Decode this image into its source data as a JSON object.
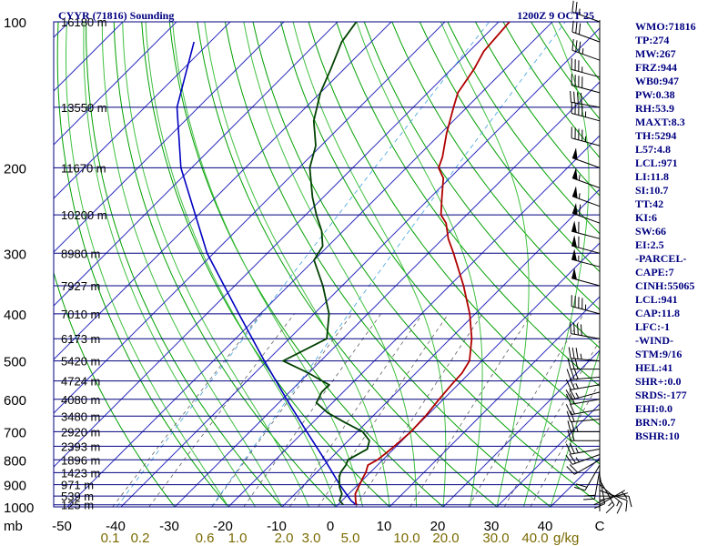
{
  "header": {
    "station": "CYYR (71816) Sounding",
    "time": "1200Z  9 OCT 25"
  },
  "indices": [
    "WMO:71816",
    "TP:274",
    "MW:267",
    "FRZ:944",
    "WB0:947",
    "PW:0.38",
    "RH:53.9",
    "MAXT:8.3",
    "TH:5294",
    "L57:4.8",
    "LCL:971",
    "LI:11.8",
    "SI:10.7",
    "TT:42",
    "KI:6",
    "SW:66",
    "EI:2.5",
    "-PARCEL-",
    "CAPE:7",
    "CINH:55065",
    "LCL:941",
    "CAP:11.8",
    "LFC:-1",
    "-WIND-",
    "STM:9/16",
    "HEL:41",
    "SHR+:0.0",
    "SRDS:-177",
    "EHI:0.0",
    "BRN:0.7",
    "BSHR:10"
  ],
  "colors": {
    "isobar": "#000080",
    "isotherm": "#3030c0",
    "dry_adiabat": "#00a000",
    "moist_adiabat": "#40c040",
    "mixing_ratio": "#606060",
    "temperature": "#b00000",
    "dewpoint": "#004000",
    "parcel": "#0000c0",
    "wind_barb": "#000000",
    "mixing_label": "#7a6a00"
  },
  "chart_data": {
    "type": "skew-t",
    "pressure_unit": "mb",
    "mixing_ratio_unit": "g/kg",
    "pressure_ticks": [
      100,
      200,
      300,
      400,
      500,
      600,
      700,
      800,
      900,
      1000
    ],
    "temperature_ticks": [
      -50,
      -40,
      -30,
      -20,
      -10,
      0,
      10,
      20,
      30,
      40
    ],
    "temperature_tick_labels": [
      "-50",
      "-40",
      "-30",
      "-20",
      "-10",
      "0",
      "10",
      "20",
      "30",
      "40"
    ],
    "wind_axis_label": "C",
    "mixing_ratio_labels": [
      "0.1",
      "0.2",
      "0.6",
      "1.0",
      "2.0",
      "3.0",
      "5.0",
      "10.0",
      "20.0",
      "30.0",
      "40.0"
    ],
    "mixing_ratio_values": [
      0.1,
      0.2,
      0.6,
      1.0,
      2.0,
      3.0,
      5.0,
      10.0,
      20.0,
      30.0,
      40.0
    ],
    "height_levels": [
      {
        "p": 100,
        "label": "16180 m"
      },
      {
        "p": 150,
        "label": "13550 m"
      },
      {
        "p": 200,
        "label": "11670 m"
      },
      {
        "p": 250,
        "label": "10200 m"
      },
      {
        "p": 300,
        "label": "8980 m"
      },
      {
        "p": 350,
        "label": "7927 m"
      },
      {
        "p": 400,
        "label": "7010 m"
      },
      {
        "p": 450,
        "label": "6173 m"
      },
      {
        "p": 500,
        "label": "5420 m"
      },
      {
        "p": 550,
        "label": "4724 m"
      },
      {
        "p": 600,
        "label": "4080 m"
      },
      {
        "p": 650,
        "label": "3480 m"
      },
      {
        "p": 700,
        "label": "2920 m"
      },
      {
        "p": 750,
        "label": "2393 m"
      },
      {
        "p": 800,
        "label": "1896 m"
      },
      {
        "p": 850,
        "label": "1423 m"
      },
      {
        "p": 900,
        "label": "971 m"
      },
      {
        "p": 950,
        "label": "539 m"
      },
      {
        "p": 990,
        "label": "125 m"
      }
    ],
    "temperature_profile": [
      [
        990,
        3.4
      ],
      [
        970,
        2.5
      ],
      [
        940,
        1.2
      ],
      [
        900,
        0.3
      ],
      [
        870,
        -0.4
      ],
      [
        850,
        -0.8
      ],
      [
        820,
        -1.8
      ],
      [
        800,
        -1.0
      ],
      [
        770,
        -0.6
      ],
      [
        740,
        -0.3
      ],
      [
        700,
        0.0
      ],
      [
        650,
        -0.2
      ],
      [
        600,
        -0.8
      ],
      [
        560,
        -1.2
      ],
      [
        530,
        -1.4
      ],
      [
        500,
        -2.3
      ],
      [
        450,
        -6.0
      ],
      [
        400,
        -11.0
      ],
      [
        350,
        -17.4
      ],
      [
        300,
        -25.3
      ],
      [
        280,
        -29.0
      ],
      [
        260,
        -32.3
      ],
      [
        250,
        -34.8
      ],
      [
        230,
        -37.9
      ],
      [
        210,
        -41.2
      ],
      [
        200,
        -44.0
      ],
      [
        190,
        -45.3
      ],
      [
        170,
        -48.9
      ],
      [
        150,
        -52.5
      ],
      [
        140,
        -54.4
      ],
      [
        125,
        -55.8
      ],
      [
        115,
        -57.3
      ],
      [
        100,
        -58.0
      ]
    ],
    "dewpoint_profile": [
      [
        990,
        1.0
      ],
      [
        970,
        -0.5
      ],
      [
        940,
        -1.3
      ],
      [
        910,
        -3.0
      ],
      [
        870,
        -4.8
      ],
      [
        850,
        -5.5
      ],
      [
        820,
        -5.9
      ],
      [
        800,
        -6.5
      ],
      [
        760,
        -4.9
      ],
      [
        730,
        -6.1
      ],
      [
        700,
        -9.0
      ],
      [
        670,
        -14.0
      ],
      [
        640,
        -19.0
      ],
      [
        610,
        -23.0
      ],
      [
        580,
        -24.0
      ],
      [
        560,
        -24.0
      ],
      [
        530,
        -30.0
      ],
      [
        500,
        -37.0
      ],
      [
        450,
        -33.0
      ],
      [
        400,
        -37.2
      ],
      [
        350,
        -43.6
      ],
      [
        310,
        -50.0
      ],
      [
        290,
        -51.0
      ],
      [
        270,
        -54.0
      ],
      [
        250,
        -58.0
      ],
      [
        230,
        -62.0
      ],
      [
        200,
        -68.0
      ],
      [
        180,
        -71.0
      ],
      [
        160,
        -76.0
      ],
      [
        140,
        -80.0
      ],
      [
        125,
        -82.5
      ],
      [
        110,
        -85.5
      ],
      [
        100,
        -86.5
      ]
    ],
    "parcel_profile": [
      [
        990,
        3.4
      ],
      [
        971,
        1.7
      ],
      [
        900,
        -3.4
      ],
      [
        800,
        -10.8
      ],
      [
        700,
        -19.4
      ],
      [
        600,
        -29.2
      ],
      [
        500,
        -40.5
      ],
      [
        400,
        -54.0
      ],
      [
        300,
        -71.2
      ],
      [
        200,
        -92.0
      ],
      [
        150,
        -104.0
      ],
      [
        110,
        -113.0
      ]
    ],
    "wind_barbs": [
      {
        "p": 990,
        "dir": 60,
        "spd": 5
      },
      {
        "p": 970,
        "dir": 75,
        "spd": 5
      },
      {
        "p": 950,
        "dir": 90,
        "spd": 10
      },
      {
        "p": 925,
        "dir": 110,
        "spd": 10
      },
      {
        "p": 900,
        "dir": 130,
        "spd": 15
      },
      {
        "p": 880,
        "dir": 150,
        "spd": 15
      },
      {
        "p": 860,
        "dir": 170,
        "spd": 20
      },
      {
        "p": 840,
        "dir": 190,
        "spd": 20
      },
      {
        "p": 820,
        "dir": 210,
        "spd": 20
      },
      {
        "p": 800,
        "dir": 240,
        "spd": 20
      },
      {
        "p": 780,
        "dir": 250,
        "spd": 25
      },
      {
        "p": 760,
        "dir": 260,
        "spd": 25
      },
      {
        "p": 730,
        "dir": 270,
        "spd": 20
      },
      {
        "p": 700,
        "dir": 270,
        "spd": 25
      },
      {
        "p": 660,
        "dir": 265,
        "spd": 20
      },
      {
        "p": 630,
        "dir": 260,
        "spd": 20
      },
      {
        "p": 600,
        "dir": 260,
        "spd": 20
      },
      {
        "p": 580,
        "dir": 255,
        "spd": 25
      },
      {
        "p": 560,
        "dir": 260,
        "spd": 25
      },
      {
        "p": 540,
        "dir": 265,
        "spd": 30
      },
      {
        "p": 520,
        "dir": 270,
        "spd": 30
      },
      {
        "p": 500,
        "dir": 275,
        "spd": 35
      },
      {
        "p": 450,
        "dir": 280,
        "spd": 40
      },
      {
        "p": 400,
        "dir": 285,
        "spd": 45
      },
      {
        "p": 350,
        "dir": 285,
        "spd": 50
      },
      {
        "p": 320,
        "dir": 285,
        "spd": 55
      },
      {
        "p": 300,
        "dir": 285,
        "spd": 60
      },
      {
        "p": 280,
        "dir": 285,
        "spd": 60
      },
      {
        "p": 260,
        "dir": 290,
        "spd": 60
      },
      {
        "p": 240,
        "dir": 290,
        "spd": 55
      },
      {
        "p": 220,
        "dir": 290,
        "spd": 55
      },
      {
        "p": 200,
        "dir": 290,
        "spd": 50
      },
      {
        "p": 180,
        "dir": 285,
        "spd": 45
      },
      {
        "p": 160,
        "dir": 285,
        "spd": 45
      },
      {
        "p": 150,
        "dir": 280,
        "spd": 40
      },
      {
        "p": 140,
        "dir": 285,
        "spd": 40
      },
      {
        "p": 130,
        "dir": 285,
        "spd": 35
      },
      {
        "p": 120,
        "dir": 290,
        "spd": 35
      },
      {
        "p": 110,
        "dir": 290,
        "spd": 30
      },
      {
        "p": 100,
        "dir": 290,
        "spd": 25
      }
    ]
  }
}
